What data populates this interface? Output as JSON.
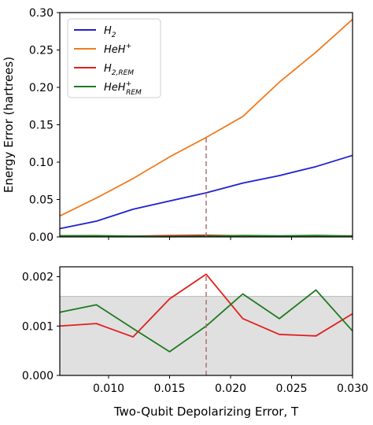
{
  "chart_data": [
    {
      "type": "line",
      "panel": "top",
      "title": "",
      "ylabel": "Energy Error (hartrees)",
      "xlabel": "",
      "xlim": [
        0.006,
        0.03
      ],
      "ylim": [
        0.0,
        0.3
      ],
      "yticks": [
        "0.00",
        "0.05",
        "0.10",
        "0.15",
        "0.20",
        "0.25",
        "0.30"
      ],
      "yticks_values": [
        0.0,
        0.05,
        0.1,
        0.15,
        0.2,
        0.25,
        0.3
      ],
      "legend": {
        "position": "top-left",
        "entries": [
          {
            "base": "H",
            "sub": "2",
            "sup": "",
            "color": "#1f1fd0"
          },
          {
            "base": "HeH",
            "sub": "",
            "sup": "+",
            "color": "#f07b1f"
          },
          {
            "base": "H",
            "sub": "2,REM",
            "sup": "",
            "color": "#e0201e"
          },
          {
            "base": "HeH",
            "sub": "REM",
            "sup": "+",
            "color": "#1f7a1f"
          }
        ]
      },
      "series": [
        {
          "color": "#1f1fd0",
          "x": [
            0.006,
            0.009,
            0.012,
            0.015,
            0.018,
            0.021,
            0.024,
            0.027,
            0.03
          ],
          "values": [
            0.011,
            0.021,
            0.037,
            0.048,
            0.059,
            0.072,
            0.082,
            0.094,
            0.109
          ]
        },
        {
          "color": "#f07b1f",
          "x": [
            0.006,
            0.009,
            0.012,
            0.015,
            0.018,
            0.021,
            0.024,
            0.027,
            0.03
          ],
          "values": [
            0.028,
            0.052,
            0.078,
            0.107,
            0.133,
            0.161,
            0.207,
            0.247,
            0.291
          ]
        },
        {
          "color": "#e0201e",
          "x": [
            0.006,
            0.009,
            0.012,
            0.015,
            0.018,
            0.021,
            0.024,
            0.027,
            0.03
          ],
          "values": [
            0.001,
            0.00105,
            0.00078,
            0.00155,
            0.00205,
            0.00115,
            0.00083,
            0.0008,
            0.00125
          ]
        },
        {
          "color": "#1f7a1f",
          "x": [
            0.006,
            0.009,
            0.012,
            0.015,
            0.018,
            0.021,
            0.024,
            0.027,
            0.03
          ],
          "values": [
            0.00128,
            0.00143,
            0.00095,
            0.00048,
            0.001,
            0.00165,
            0.00115,
            0.00173,
            0.0009
          ]
        }
      ],
      "annotations": [
        {
          "type": "vline",
          "x": 0.018,
          "y_from": 0.0,
          "y_to": 0.133,
          "color": "#b07070",
          "style": "dashed"
        }
      ]
    },
    {
      "type": "line",
      "panel": "bottom",
      "xlabel": "Two-Qubit Depolarizing Error, T",
      "ylabel": "",
      "xlim": [
        0.006,
        0.03
      ],
      "ylim": [
        0.0,
        0.0022
      ],
      "xticks": [
        "0.010",
        "0.015",
        "0.020",
        "0.025",
        "0.030"
      ],
      "xticks_values": [
        0.01,
        0.015,
        0.02,
        0.025,
        0.03
      ],
      "yticks": [
        "0.000",
        "0.001",
        "0.002"
      ],
      "yticks_values": [
        0.0,
        0.001,
        0.002
      ],
      "shaded_band": {
        "y_from": 0.0,
        "y_to": 0.0016,
        "color": "#e0e0e0"
      },
      "series": [
        {
          "color": "#e0201e",
          "x": [
            0.006,
            0.009,
            0.012,
            0.015,
            0.018,
            0.021,
            0.024,
            0.027,
            0.03
          ],
          "values": [
            0.001,
            0.00105,
            0.00078,
            0.00155,
            0.00205,
            0.00115,
            0.00083,
            0.0008,
            0.00125
          ]
        },
        {
          "color": "#1f7a1f",
          "x": [
            0.006,
            0.009,
            0.012,
            0.015,
            0.018,
            0.021,
            0.024,
            0.027,
            0.03
          ],
          "values": [
            0.00128,
            0.00143,
            0.00095,
            0.00048,
            0.001,
            0.00165,
            0.00115,
            0.00173,
            0.0009
          ]
        }
      ],
      "annotations": [
        {
          "type": "vline",
          "x": 0.018,
          "y_from": 0.0,
          "y_to": 0.00205,
          "color": "#b07070",
          "style": "dashed"
        }
      ]
    }
  ]
}
